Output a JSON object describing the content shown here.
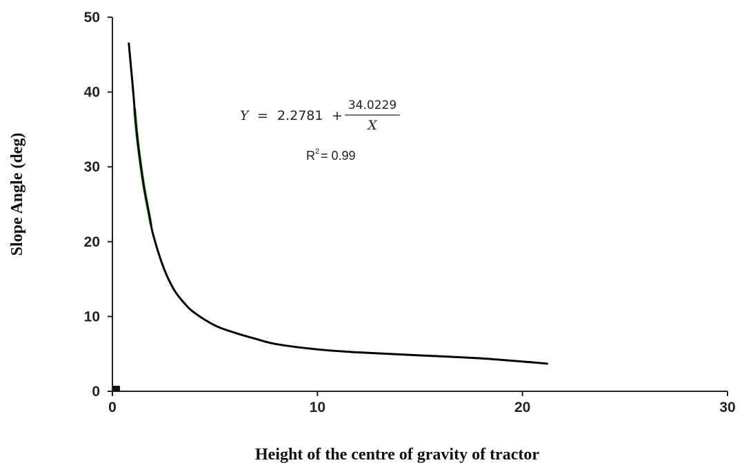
{
  "chart_data": {
    "type": "line",
    "title": "",
    "xlabel": "Height of the centre of gravity of tractor",
    "ylabel": "Slope Angle (deg)",
    "xlim": [
      0,
      30
    ],
    "ylim": [
      0,
      50
    ],
    "x_ticks": [
      "0",
      "10",
      "20",
      "30"
    ],
    "y_ticks": [
      "0",
      "10",
      "20",
      "30",
      "40",
      "50"
    ],
    "grid": false,
    "legend": "none",
    "line_color": "#000000",
    "fit_highlight_color": "#22cc22",
    "series": [
      {
        "x": [
          0.8,
          1.0,
          1.2,
          1.5,
          1.8,
          2.0,
          2.5,
          3.0,
          3.5,
          4.0,
          5.0,
          6.0,
          7.0,
          8.0,
          10.0,
          12.0,
          15.0,
          18.0,
          21.2
        ],
        "values": [
          46.5,
          40.5,
          34.2,
          28.0,
          23.5,
          20.8,
          16.5,
          13.6,
          11.8,
          10.5,
          8.8,
          7.8,
          7.0,
          6.3,
          5.6,
          5.2,
          4.8,
          4.4,
          3.7
        ]
      }
    ],
    "annotations": {
      "equation_prefix": "Y",
      "equation_equals": "=",
      "equation_const": "2.2781",
      "equation_plus": "+",
      "equation_numerator": "34.0229",
      "equation_denominator": "X",
      "r2_label": "R",
      "r2_exp": "2",
      "r2_value": "= 0.99"
    }
  }
}
